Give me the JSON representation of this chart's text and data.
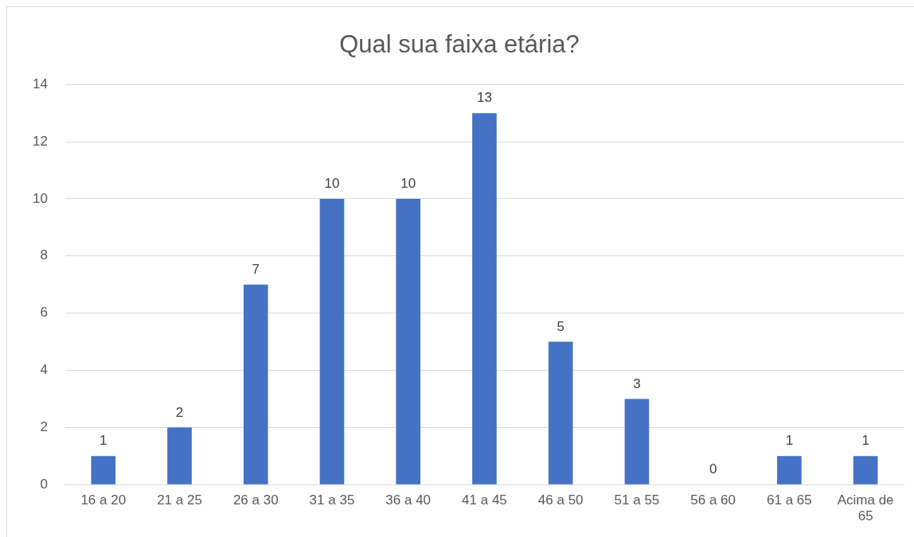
{
  "chart_data": {
    "type": "bar",
    "title": "Qual sua faixa etária?",
    "categories": [
      "16 a 20",
      "21 a 25",
      "26 a 30",
      "31 a 35",
      "36 a 40",
      "41 a 45",
      "46 a 50",
      "51 a 55",
      "56 a 60",
      "61 a 65",
      "Acima de 65"
    ],
    "values": [
      1,
      2,
      7,
      10,
      10,
      13,
      5,
      3,
      0,
      1,
      1
    ],
    "color": "#4472c4",
    "ylim": [
      0,
      14
    ],
    "yticks": [
      0,
      2,
      4,
      6,
      8,
      10,
      12,
      14
    ],
    "grid": "y",
    "data_labels": true,
    "legend": false
  }
}
